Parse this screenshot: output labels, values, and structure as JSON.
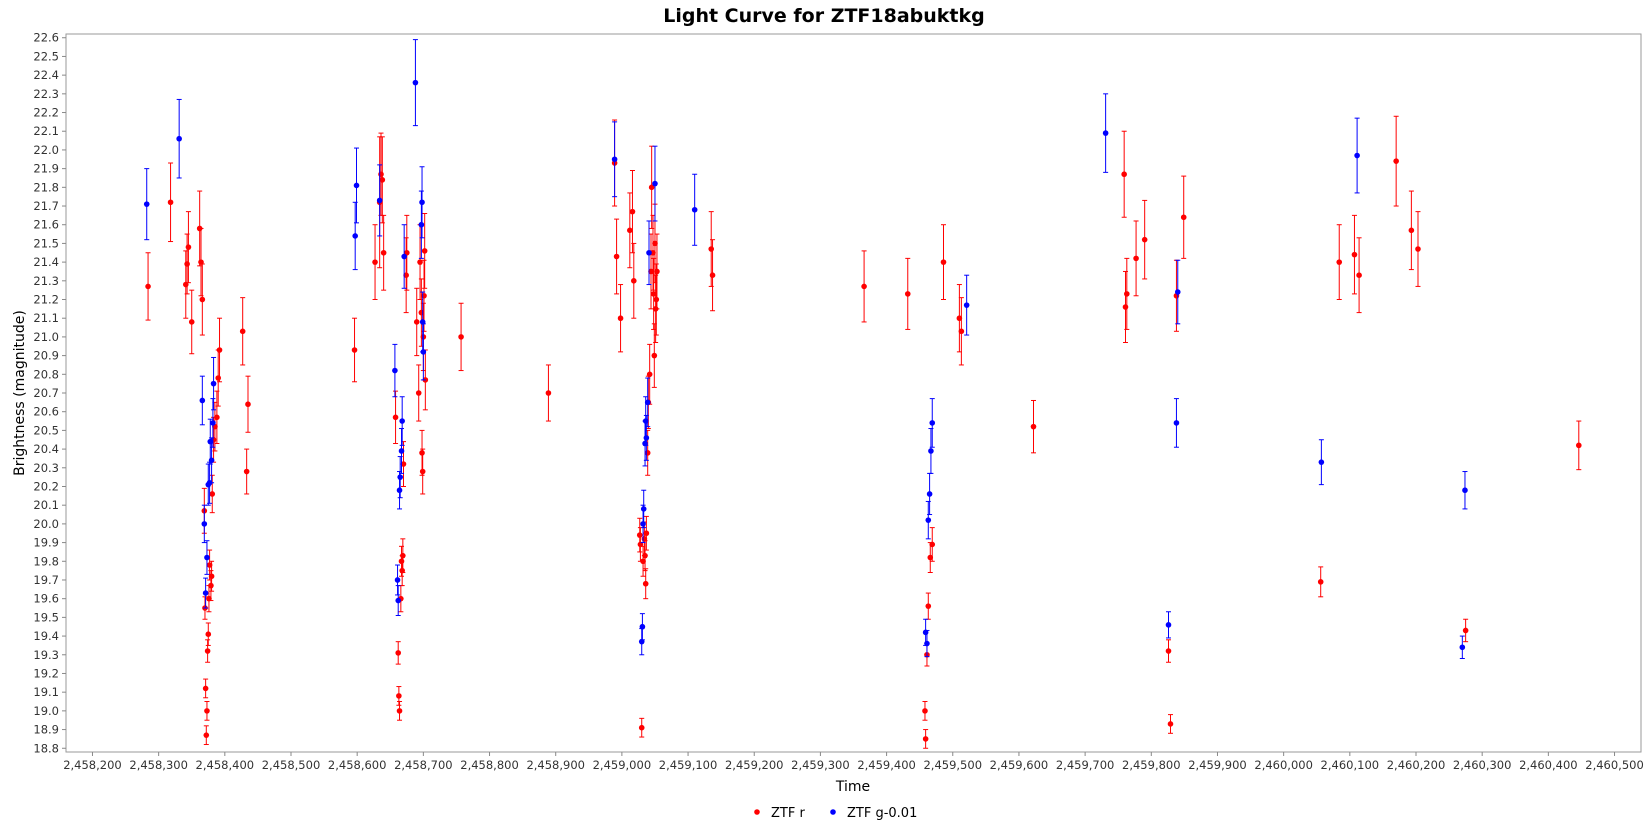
{
  "chart_data": {
    "type": "scatter",
    "title": "Light Curve for ZTF18abuktkg",
    "xlabel": "Time",
    "ylabel": "Brightness (magnitude)",
    "xlim": [
      2458160,
      2460540
    ],
    "ylim": [
      22.62,
      18.78
    ],
    "y_inverted": true,
    "grid": false,
    "legend_position": "bottom-center",
    "x_ticks": [
      2458200,
      2458300,
      2458400,
      2458500,
      2458600,
      2458700,
      2458800,
      2458900,
      2459000,
      2459100,
      2459200,
      2459300,
      2459400,
      2459500,
      2459600,
      2459700,
      2459800,
      2459900,
      2460000,
      2460100,
      2460200,
      2460300,
      2460400,
      2460500
    ],
    "x_tick_labels": [
      "2,458,200",
      "2,458,300",
      "2,458,400",
      "2,458,500",
      "2,458,600",
      "2,458,700",
      "2,458,800",
      "2,458,900",
      "2,459,000",
      "2,459,100",
      "2,459,200",
      "2,459,300",
      "2,459,400",
      "2,459,500",
      "2,459,600",
      "2,459,700",
      "2,459,800",
      "2,459,900",
      "2,460,000",
      "2,460,100",
      "2,460,200",
      "2,460,300",
      "2,460,400",
      "2,460,500"
    ],
    "y_ticks": [
      18.8,
      18.9,
      19.0,
      19.1,
      19.2,
      19.3,
      19.4,
      19.5,
      19.6,
      19.7,
      19.8,
      19.9,
      20.0,
      20.1,
      20.2,
      20.3,
      20.4,
      20.5,
      20.6,
      20.7,
      20.8,
      20.9,
      21.0,
      21.1,
      21.2,
      21.3,
      21.4,
      21.5,
      21.6,
      21.7,
      21.8,
      21.9,
      22.0,
      22.1,
      22.2,
      22.3,
      22.4,
      22.5,
      22.6
    ],
    "y_tick_labels": [
      "18.8",
      "18.9",
      "19.0",
      "19.1",
      "19.2",
      "19.3",
      "19.4",
      "19.5",
      "19.6",
      "19.7",
      "19.8",
      "19.9",
      "20.0",
      "20.1",
      "20.2",
      "20.3",
      "20.4",
      "20.5",
      "20.6",
      "20.7",
      "20.8",
      "20.9",
      "21.0",
      "21.1",
      "21.2",
      "21.3",
      "21.4",
      "21.5",
      "21.6",
      "21.7",
      "21.8",
      "21.9",
      "22.0",
      "22.1",
      "22.2",
      "22.3",
      "22.4",
      "22.5",
      "22.6"
    ],
    "series": [
      {
        "name": "ZTF r",
        "color": "#ff0000",
        "points": [
          {
            "x": 2458284,
            "y": 21.27,
            "err": 0.18
          },
          {
            "x": 2458318,
            "y": 21.72,
            "err": 0.21
          },
          {
            "x": 2458341,
            "y": 21.28,
            "err": 0.18
          },
          {
            "x": 2458343,
            "y": 21.39,
            "err": 0.16
          },
          {
            "x": 2458345,
            "y": 21.48,
            "err": 0.19
          },
          {
            "x": 2458350,
            "y": 21.08,
            "err": 0.17
          },
          {
            "x": 2458362,
            "y": 21.58,
            "err": 0.2
          },
          {
            "x": 2458364,
            "y": 21.4,
            "err": 0.18
          },
          {
            "x": 2458366,
            "y": 21.2,
            "err": 0.19
          },
          {
            "x": 2458369,
            "y": 20.07,
            "err": 0.12
          },
          {
            "x": 2458370,
            "y": 19.55,
            "err": 0.06
          },
          {
            "x": 2458371,
            "y": 19.12,
            "err": 0.05
          },
          {
            "x": 2458372,
            "y": 18.87,
            "err": 0.05
          },
          {
            "x": 2458373,
            "y": 19.0,
            "err": 0.05
          },
          {
            "x": 2458374,
            "y": 19.32,
            "err": 0.06
          },
          {
            "x": 2458375,
            "y": 19.41,
            "err": 0.06
          },
          {
            "x": 2458376,
            "y": 19.6,
            "err": 0.07
          },
          {
            "x": 2458377,
            "y": 19.78,
            "err": 0.08
          },
          {
            "x": 2458379,
            "y": 19.67,
            "err": 0.08
          },
          {
            "x": 2458380,
            "y": 19.72,
            "err": 0.08
          },
          {
            "x": 2458381,
            "y": 20.16,
            "err": 0.1
          },
          {
            "x": 2458383,
            "y": 20.45,
            "err": 0.12
          },
          {
            "x": 2458385,
            "y": 20.52,
            "err": 0.13
          },
          {
            "x": 2458388,
            "y": 20.57,
            "err": 0.14
          },
          {
            "x": 2458390,
            "y": 20.78,
            "err": 0.15
          },
          {
            "x": 2458392,
            "y": 20.93,
            "err": 0.17
          },
          {
            "x": 2458427,
            "y": 21.03,
            "err": 0.18
          },
          {
            "x": 2458433,
            "y": 20.28,
            "err": 0.12
          },
          {
            "x": 2458435,
            "y": 20.64,
            "err": 0.15
          },
          {
            "x": 2458596,
            "y": 20.93,
            "err": 0.17
          },
          {
            "x": 2458627,
            "y": 21.4,
            "err": 0.2
          },
          {
            "x": 2458634,
            "y": 21.72,
            "err": 0.35
          },
          {
            "x": 2458636,
            "y": 21.87,
            "err": 0.22
          },
          {
            "x": 2458638,
            "y": 21.84,
            "err": 0.23
          },
          {
            "x": 2458640,
            "y": 21.45,
            "err": 0.2
          },
          {
            "x": 2458658,
            "y": 20.57,
            "err": 0.14
          },
          {
            "x": 2458662,
            "y": 19.31,
            "err": 0.06
          },
          {
            "x": 2458663,
            "y": 19.08,
            "err": 0.05
          },
          {
            "x": 2458664,
            "y": 19.0,
            "err": 0.05
          },
          {
            "x": 2458666,
            "y": 19.6,
            "err": 0.07
          },
          {
            "x": 2458667,
            "y": 19.8,
            "err": 0.08
          },
          {
            "x": 2458668,
            "y": 19.75,
            "err": 0.08
          },
          {
            "x": 2458669,
            "y": 19.83,
            "err": 0.09
          },
          {
            "x": 2458670,
            "y": 20.32,
            "err": 0.12
          },
          {
            "x": 2458674,
            "y": 21.33,
            "err": 0.2
          },
          {
            "x": 2458675,
            "y": 21.45,
            "err": 0.2
          },
          {
            "x": 2458690,
            "y": 21.08,
            "err": 0.18
          },
          {
            "x": 2458693,
            "y": 20.7,
            "err": 0.15
          },
          {
            "x": 2458695,
            "y": 21.4,
            "err": 0.2
          },
          {
            "x": 2458697,
            "y": 21.13,
            "err": 0.18
          },
          {
            "x": 2458698,
            "y": 20.38,
            "err": 0.12
          },
          {
            "x": 2458699,
            "y": 20.28,
            "err": 0.12
          },
          {
            "x": 2458700,
            "y": 21.0,
            "err": 0.18
          },
          {
            "x": 2458701,
            "y": 21.22,
            "err": 0.19
          },
          {
            "x": 2458702,
            "y": 21.46,
            "err": 0.2
          },
          {
            "x": 2458703,
            "y": 20.77,
            "err": 0.16
          },
          {
            "x": 2458757,
            "y": 21.0,
            "err": 0.18
          },
          {
            "x": 2458889,
            "y": 20.7,
            "err": 0.15
          },
          {
            "x": 2458989,
            "y": 21.93,
            "err": 0.23
          },
          {
            "x": 2458992,
            "y": 21.43,
            "err": 0.2
          },
          {
            "x": 2458998,
            "y": 21.1,
            "err": 0.18
          },
          {
            "x": 2459012,
            "y": 21.57,
            "err": 0.2
          },
          {
            "x": 2459016,
            "y": 21.67,
            "err": 0.22
          },
          {
            "x": 2459018,
            "y": 21.3,
            "err": 0.2
          },
          {
            "x": 2459027,
            "y": 19.94,
            "err": 0.09
          },
          {
            "x": 2459028,
            "y": 19.89,
            "err": 0.09
          },
          {
            "x": 2459030,
            "y": 18.91,
            "err": 0.05
          },
          {
            "x": 2459032,
            "y": 19.8,
            "err": 0.08
          },
          {
            "x": 2459034,
            "y": 19.92,
            "err": 0.09
          },
          {
            "x": 2459035,
            "y": 19.83,
            "err": 0.08
          },
          {
            "x": 2459036,
            "y": 19.68,
            "err": 0.08
          },
          {
            "x": 2459037,
            "y": 19.95,
            "err": 0.09
          },
          {
            "x": 2459039,
            "y": 20.38,
            "err": 0.12
          },
          {
            "x": 2459040,
            "y": 20.65,
            "err": 0.14
          },
          {
            "x": 2459042,
            "y": 20.8,
            "err": 0.16
          },
          {
            "x": 2459044,
            "y": 21.35,
            "err": 0.2
          },
          {
            "x": 2459045,
            "y": 21.8,
            "err": 0.22
          },
          {
            "x": 2459047,
            "y": 21.45,
            "err": 0.2
          },
          {
            "x": 2459048,
            "y": 21.23,
            "err": 0.19
          },
          {
            "x": 2459049,
            "y": 20.9,
            "err": 0.17
          },
          {
            "x": 2459050,
            "y": 21.5,
            "err": 0.21
          },
          {
            "x": 2459051,
            "y": 21.15,
            "err": 0.18
          },
          {
            "x": 2459052,
            "y": 21.2,
            "err": 0.19
          },
          {
            "x": 2459053,
            "y": 21.35,
            "err": 0.2
          },
          {
            "x": 2459135,
            "y": 21.47,
            "err": 0.2
          },
          {
            "x": 2459137,
            "y": 21.33,
            "err": 0.19
          },
          {
            "x": 2459366,
            "y": 21.27,
            "err": 0.19
          },
          {
            "x": 2459432,
            "y": 21.23,
            "err": 0.19
          },
          {
            "x": 2459458,
            "y": 19.0,
            "err": 0.05
          },
          {
            "x": 2459459,
            "y": 18.85,
            "err": 0.05
          },
          {
            "x": 2459461,
            "y": 19.3,
            "err": 0.06
          },
          {
            "x": 2459463,
            "y": 19.56,
            "err": 0.07
          },
          {
            "x": 2459466,
            "y": 19.82,
            "err": 0.08
          },
          {
            "x": 2459469,
            "y": 19.89,
            "err": 0.09
          },
          {
            "x": 2459486,
            "y": 21.4,
            "err": 0.2
          },
          {
            "x": 2459510,
            "y": 21.1,
            "err": 0.18
          },
          {
            "x": 2459513,
            "y": 21.03,
            "err": 0.18
          },
          {
            "x": 2459622,
            "y": 20.52,
            "err": 0.14
          },
          {
            "x": 2459759,
            "y": 21.87,
            "err": 0.23
          },
          {
            "x": 2459761,
            "y": 21.16,
            "err": 0.19
          },
          {
            "x": 2459763,
            "y": 21.23,
            "err": 0.19
          },
          {
            "x": 2459777,
            "y": 21.42,
            "err": 0.2
          },
          {
            "x": 2459790,
            "y": 21.52,
            "err": 0.21
          },
          {
            "x": 2459826,
            "y": 19.32,
            "err": 0.06
          },
          {
            "x": 2459829,
            "y": 18.93,
            "err": 0.05
          },
          {
            "x": 2459838,
            "y": 21.22,
            "err": 0.19
          },
          {
            "x": 2459849,
            "y": 21.64,
            "err": 0.22
          },
          {
            "x": 2460056,
            "y": 19.69,
            "err": 0.08
          },
          {
            "x": 2460084,
            "y": 21.4,
            "err": 0.2
          },
          {
            "x": 2460107,
            "y": 21.44,
            "err": 0.21
          },
          {
            "x": 2460114,
            "y": 21.33,
            "err": 0.2
          },
          {
            "x": 2460170,
            "y": 21.94,
            "err": 0.24
          },
          {
            "x": 2460193,
            "y": 21.57,
            "err": 0.21
          },
          {
            "x": 2460203,
            "y": 21.47,
            "err": 0.2
          },
          {
            "x": 2460275,
            "y": 19.43,
            "err": 0.06
          },
          {
            "x": 2460446,
            "y": 20.42,
            "err": 0.13
          }
        ]
      },
      {
        "name": "ZTF g-0.01",
        "color": "#0000ff",
        "points": [
          {
            "x": 2458282,
            "y": 21.71,
            "err": 0.19
          },
          {
            "x": 2458331,
            "y": 22.06,
            "err": 0.21
          },
          {
            "x": 2458366,
            "y": 20.66,
            "err": 0.13
          },
          {
            "x": 2458369,
            "y": 20.0,
            "err": 0.1
          },
          {
            "x": 2458371,
            "y": 19.63,
            "err": 0.08
          },
          {
            "x": 2458373,
            "y": 19.82,
            "err": 0.09
          },
          {
            "x": 2458375,
            "y": 20.21,
            "err": 0.11
          },
          {
            "x": 2458377,
            "y": 20.22,
            "err": 0.11
          },
          {
            "x": 2458378,
            "y": 20.44,
            "err": 0.12
          },
          {
            "x": 2458380,
            "y": 20.34,
            "err": 0.12
          },
          {
            "x": 2458382,
            "y": 20.54,
            "err": 0.13
          },
          {
            "x": 2458383,
            "y": 20.75,
            "err": 0.14
          },
          {
            "x": 2458597,
            "y": 21.54,
            "err": 0.18
          },
          {
            "x": 2458599,
            "y": 21.81,
            "err": 0.2
          },
          {
            "x": 2458634,
            "y": 21.73,
            "err": 0.19
          },
          {
            "x": 2458657,
            "y": 20.82,
            "err": 0.14
          },
          {
            "x": 2458661,
            "y": 19.7,
            "err": 0.08
          },
          {
            "x": 2458662,
            "y": 19.59,
            "err": 0.08
          },
          {
            "x": 2458664,
            "y": 20.18,
            "err": 0.1
          },
          {
            "x": 2458665,
            "y": 20.25,
            "err": 0.11
          },
          {
            "x": 2458667,
            "y": 20.39,
            "err": 0.12
          },
          {
            "x": 2458668,
            "y": 20.55,
            "err": 0.13
          },
          {
            "x": 2458671,
            "y": 21.43,
            "err": 0.17
          },
          {
            "x": 2458688,
            "y": 22.36,
            "err": 0.23
          },
          {
            "x": 2458697,
            "y": 21.6,
            "err": 0.18
          },
          {
            "x": 2458698,
            "y": 21.72,
            "err": 0.19
          },
          {
            "x": 2458699,
            "y": 21.08,
            "err": 0.16
          },
          {
            "x": 2458700,
            "y": 20.92,
            "err": 0.15
          },
          {
            "x": 2458989,
            "y": 21.95,
            "err": 0.2
          },
          {
            "x": 2459030,
            "y": 19.37,
            "err": 0.07
          },
          {
            "x": 2459031,
            "y": 19.45,
            "err": 0.07
          },
          {
            "x": 2459032,
            "y": 20.0,
            "err": 0.1
          },
          {
            "x": 2459033,
            "y": 20.08,
            "err": 0.1
          },
          {
            "x": 2459035,
            "y": 20.43,
            "err": 0.12
          },
          {
            "x": 2459036,
            "y": 20.55,
            "err": 0.13
          },
          {
            "x": 2459037,
            "y": 20.46,
            "err": 0.12
          },
          {
            "x": 2459039,
            "y": 20.65,
            "err": 0.13
          },
          {
            "x": 2459041,
            "y": 21.45,
            "err": 0.17
          },
          {
            "x": 2459050,
            "y": 21.82,
            "err": 0.2
          },
          {
            "x": 2459110,
            "y": 21.68,
            "err": 0.19
          },
          {
            "x": 2459459,
            "y": 19.42,
            "err": 0.07
          },
          {
            "x": 2459461,
            "y": 19.36,
            "err": 0.07
          },
          {
            "x": 2459463,
            "y": 20.02,
            "err": 0.1
          },
          {
            "x": 2459465,
            "y": 20.16,
            "err": 0.11
          },
          {
            "x": 2459467,
            "y": 20.39,
            "err": 0.12
          },
          {
            "x": 2459469,
            "y": 20.54,
            "err": 0.13
          },
          {
            "x": 2459521,
            "y": 21.17,
            "err": 0.16
          },
          {
            "x": 2459731,
            "y": 22.09,
            "err": 0.21
          },
          {
            "x": 2459826,
            "y": 19.46,
            "err": 0.07
          },
          {
            "x": 2459838,
            "y": 20.54,
            "err": 0.13
          },
          {
            "x": 2459840,
            "y": 21.24,
            "err": 0.17
          },
          {
            "x": 2460057,
            "y": 20.33,
            "err": 0.12
          },
          {
            "x": 2460111,
            "y": 21.97,
            "err": 0.2
          },
          {
            "x": 2460270,
            "y": 19.34,
            "err": 0.06
          },
          {
            "x": 2460274,
            "y": 20.18,
            "err": 0.1
          }
        ]
      }
    ]
  }
}
